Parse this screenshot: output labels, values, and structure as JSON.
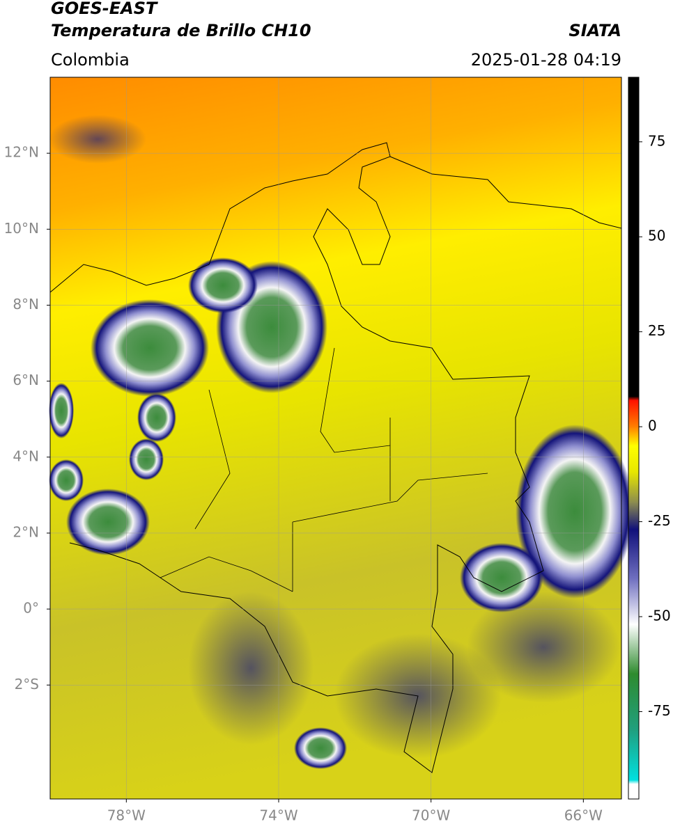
{
  "header": {
    "title": "GOES-EAST",
    "subtitle": "Temperatura de Brillo CH10",
    "source": "SIATA",
    "region": "Colombia",
    "timestamp": "2025-01-28 04:19"
  },
  "map": {
    "xlim": [
      -80,
      -65
    ],
    "ylim": [
      -5,
      14
    ],
    "xticks": [
      {
        "value": -78,
        "label": "78°W"
      },
      {
        "value": -74,
        "label": "74°W"
      },
      {
        "value": -70,
        "label": "70°W"
      },
      {
        "value": -66,
        "label": "66°W"
      }
    ],
    "yticks": [
      {
        "value": 12,
        "label": "12°N"
      },
      {
        "value": 10,
        "label": "10°N"
      },
      {
        "value": 8,
        "label": "8°N"
      },
      {
        "value": 6,
        "label": "6°N"
      },
      {
        "value": 4,
        "label": "4°N"
      },
      {
        "value": 2,
        "label": "2°N"
      },
      {
        "value": 0,
        "label": "0°"
      },
      {
        "value": -2,
        "label": "2°S"
      }
    ],
    "grid": true
  },
  "colorbar": {
    "lim": [
      -98,
      92
    ],
    "ticks": [
      75,
      50,
      25,
      0,
      -25,
      -50,
      -75
    ],
    "stops": [
      {
        "value": -98,
        "color": "#ffffff"
      },
      {
        "value": -94,
        "color": "#ffffff"
      },
      {
        "value": -93,
        "color": "#00e0e0"
      },
      {
        "value": -80,
        "color": "#20a080"
      },
      {
        "value": -65,
        "color": "#2e8b2e"
      },
      {
        "value": -52,
        "color": "#ffffff"
      },
      {
        "value": -40,
        "color": "#7070c0"
      },
      {
        "value": -27,
        "color": "#10107a"
      },
      {
        "value": -20,
        "color": "#8a8a50"
      },
      {
        "value": -12,
        "color": "#e6e600"
      },
      {
        "value": -5,
        "color": "#ffff00"
      },
      {
        "value": 0,
        "color": "#ff8000"
      },
      {
        "value": 7,
        "color": "#ff1000"
      },
      {
        "value": 8,
        "color": "#000000"
      },
      {
        "value": 92,
        "color": "#000000"
      }
    ]
  }
}
